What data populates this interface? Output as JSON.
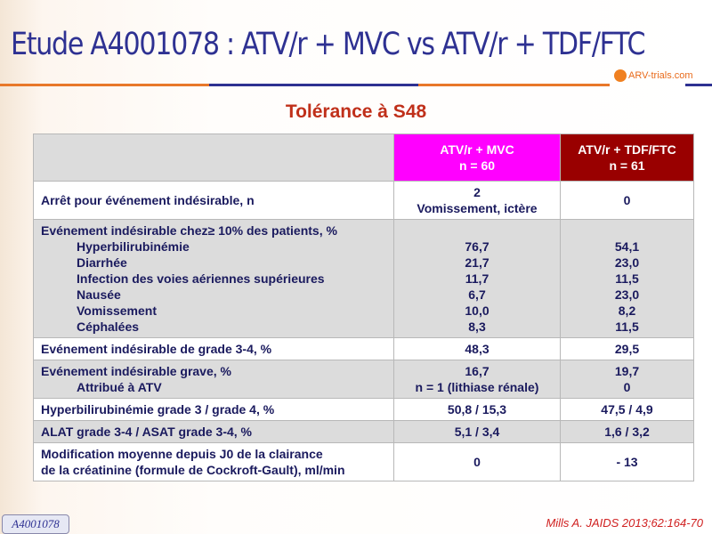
{
  "title": "Etude A4001078 : ATV/r + MVC vs ATV/r + TDF/FTC",
  "logo": "ARV-trials.com",
  "subtitle": "Tolérance à S48",
  "colors": {
    "title": "#2e3192",
    "mvc": "#ff00ff",
    "tdf": "#990000",
    "subtitle": "#c0301a"
  },
  "header": {
    "mvc": [
      "ATV/r + MVC",
      "n = 60"
    ],
    "tdf": [
      "ATV/r + TDF/FTC",
      "n = 61"
    ]
  },
  "rows": [
    {
      "label": [
        "Arrêt pour événement indésirable, n"
      ],
      "mvc": [
        "2",
        "Vomissement, ictère"
      ],
      "tdf": [
        "0"
      ]
    },
    {
      "label": [
        "Evénement indésirable chez≥ 10% des patients, %",
        "Hyperbilirubinémie",
        "Diarrhée",
        "Infection des voies aériennes supérieures",
        "Nausée",
        "Vomissement",
        "Céphalées"
      ],
      "mvc": [
        "",
        "76,7",
        "21,7",
        "11,7",
        "6,7",
        "10,0",
        "8,3"
      ],
      "tdf": [
        "",
        "54,1",
        "23,0",
        "11,5",
        "23,0",
        "8,2",
        "11,5"
      ]
    },
    {
      "label": [
        "Evénement indésirable de grade 3-4, %"
      ],
      "mvc": [
        "48,3"
      ],
      "tdf": [
        "29,5"
      ]
    },
    {
      "label": [
        "Evénement indésirable grave, %",
        "Attribué à ATV"
      ],
      "mvc": [
        "16,7",
        "n = 1 (lithiase rénale)"
      ],
      "tdf": [
        "19,7",
        "0"
      ]
    },
    {
      "label": [
        "Hyperbilirubinémie grade 3 / grade 4, %"
      ],
      "mvc": [
        "50,8 / 15,3"
      ],
      "tdf": [
        "47,5 / 4,9"
      ]
    },
    {
      "label": [
        "ALAT grade 3-4 / ASAT grade 3-4, %"
      ],
      "mvc": [
        "5,1 / 3,4"
      ],
      "tdf": [
        "1,6 / 3,2"
      ]
    },
    {
      "label": [
        "Modification moyenne depuis J0 de la clairance",
        "de la créatinine (formule de Cockroft-Gault), ml/min"
      ],
      "mvc": [
        "0"
      ],
      "tdf": [
        "- 13"
      ]
    }
  ],
  "study_tag": "A4001078",
  "reference": "Mills A. JAIDS 2013;62:164-70"
}
